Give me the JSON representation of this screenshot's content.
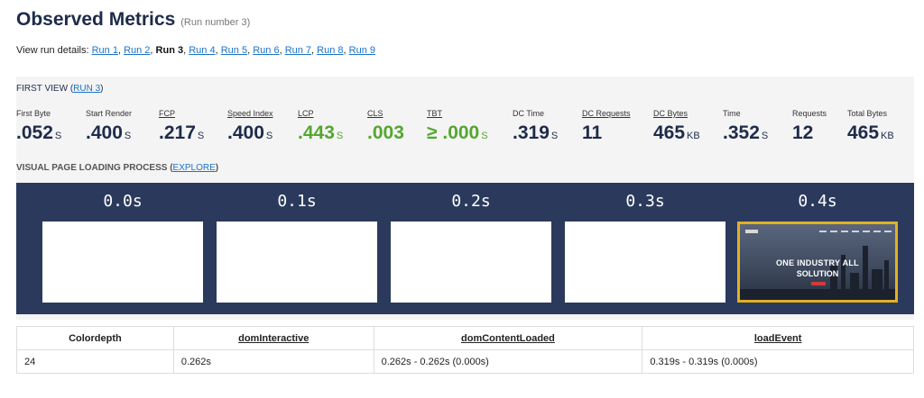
{
  "header": {
    "title": "Observed Metrics",
    "subtitle": "(Run number 3)"
  },
  "run_details": {
    "label": "View run details:",
    "runs": [
      {
        "label": "Run 1",
        "current": false
      },
      {
        "label": "Run 2",
        "current": false
      },
      {
        "label": "Run 3",
        "current": true
      },
      {
        "label": "Run 4",
        "current": false
      },
      {
        "label": "Run 5",
        "current": false
      },
      {
        "label": "Run 6",
        "current": false
      },
      {
        "label": "Run 7",
        "current": false
      },
      {
        "label": "Run 8",
        "current": false
      },
      {
        "label": "Run 9",
        "current": false
      }
    ]
  },
  "first_view": {
    "label": "FIRST VIEW (",
    "link": "RUN 3",
    "suffix": ")"
  },
  "metrics": [
    {
      "label": "First Byte",
      "value": ".052",
      "unit": "S",
      "color": "#1e2b4a"
    },
    {
      "label": "Start Render",
      "value": ".400",
      "unit": "S",
      "color": "#1e2b4a"
    },
    {
      "label": "FCP",
      "value": ".217",
      "unit": "S",
      "color": "#1e2b4a"
    },
    {
      "label": "Speed Index",
      "value": ".400",
      "unit": "S",
      "color": "#1e2b4a"
    },
    {
      "label": "LCP",
      "value": ".443",
      "unit": "S",
      "color": "#55a630"
    },
    {
      "label": "CLS",
      "value": ".003",
      "unit": "",
      "color": "#55a630"
    },
    {
      "label": "TBT",
      "value": "≥ .000",
      "unit": "S",
      "color": "#55a630"
    },
    {
      "label": "DC Time",
      "value": ".319",
      "unit": "S",
      "color": "#1e2b4a"
    },
    {
      "label": "DC Requests",
      "value": "11",
      "unit": "",
      "color": "#1e2b4a"
    },
    {
      "label": "DC Bytes",
      "value": "465",
      "unit": "KB",
      "color": "#1e2b4a"
    },
    {
      "label": "Time",
      "value": ".352",
      "unit": "S",
      "color": "#1e2b4a"
    },
    {
      "label": "Requests",
      "value": "12",
      "unit": "",
      "color": "#1e2b4a"
    },
    {
      "label": "Total Bytes",
      "value": "465",
      "unit": "KB",
      "color": "#1e2b4a"
    }
  ],
  "visual_loading": {
    "label": "VISUAL PAGE LOADING PROCESS",
    "link_prefix": " (",
    "link": "EXPLORE",
    "link_suffix": ")"
  },
  "filmstrip": [
    {
      "time": "0.0s",
      "active": false
    },
    {
      "time": "0.1s",
      "active": false
    },
    {
      "time": "0.2s",
      "active": false
    },
    {
      "time": "0.3s",
      "active": false
    },
    {
      "time": "0.4s",
      "active": true,
      "hero_line1": "ONE INDUSTRY ALL",
      "hero_line2": "SOLUTION"
    }
  ],
  "timing_table": {
    "headers": [
      "Colordepth",
      "domInteractive",
      "domContentLoaded",
      "loadEvent"
    ],
    "rows": [
      [
        "24",
        "0.262s",
        "0.262s - 0.262s (0.000s)",
        "0.319s - 0.319s (0.000s)"
      ]
    ]
  }
}
